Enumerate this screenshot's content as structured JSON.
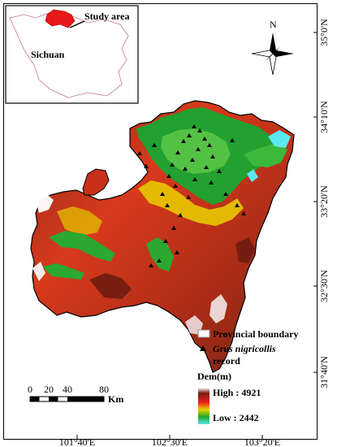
{
  "inset": {
    "study_area_label": "Study area",
    "province_label": "Sichuan"
  },
  "north_arrow": {
    "label": "N"
  },
  "graticule": {
    "longitudes": [
      "101°40'E",
      "102°30'E",
      "103°20'E"
    ],
    "latitudes": [
      "35°0'N",
      "34°10'N",
      "33°20'N",
      "32°30'N",
      "31°40'N"
    ]
  },
  "legend": {
    "provincial_boundary": "Provincial boundary",
    "species_name": "Grus nigricollis",
    "species_suffix": "record",
    "dem_title": "Dem(m)",
    "high": "High : 4921",
    "low": "Low : 2442",
    "colors": {
      "high": "#ffffff",
      "upper": "#7a1a12",
      "mid": "#e8201a",
      "middle": "#e8d400",
      "lower": "#1aa82a",
      "low": "#5ae8f0"
    }
  },
  "scale_bar": {
    "ticks": [
      "0",
      "20",
      "40",
      "80"
    ],
    "unit": "Km"
  }
}
